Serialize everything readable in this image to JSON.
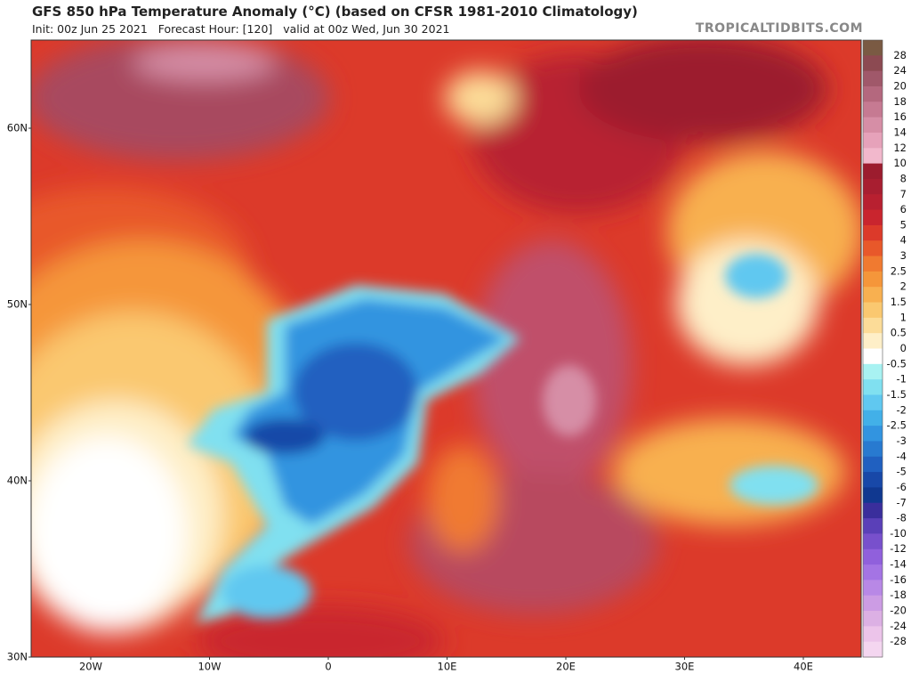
{
  "header": {
    "title": "GFS 850 hPa Temperature Anomaly (°C) (based on CFSR 1981-2010 Climatology)",
    "subtitle": "Init: 00z Jun 25 2021   Forecast Hour: [120]   valid at 00z Wed, Jun 30 2021",
    "credit": "TROPICALTIDBITS.COM"
  },
  "map": {
    "lat_labels": [
      "60N",
      "50N",
      "40N",
      "30N"
    ],
    "lon_labels": [
      "20W",
      "10W",
      "0",
      "10E",
      "20E",
      "30E",
      "40E"
    ]
  },
  "colorbar": {
    "labels": [
      28,
      24,
      20,
      18,
      16,
      14,
      12,
      10,
      8,
      7,
      6,
      5,
      4,
      3,
      2.5,
      2,
      1.5,
      1,
      0.5,
      0,
      -0.5,
      -1,
      -1.5,
      -2,
      -2.5,
      -3,
      -4,
      -5,
      -6,
      -7,
      -8,
      -10,
      -12,
      -14,
      -16,
      -18,
      -20,
      -24,
      -28
    ],
    "colors": [
      "#7a5a43",
      "#8c4a52",
      "#a0586a",
      "#b4687e",
      "#c67a92",
      "#d68ea6",
      "#e6a2ba",
      "#f2b8cc",
      "#9c1c2e",
      "#a81e30",
      "#b82030",
      "#c9252e",
      "#dc3a2a",
      "#e8582a",
      "#f07a30",
      "#f5963a",
      "#f8b050",
      "#fac870",
      "#fcdc98",
      "#feefc8",
      "#ffffff",
      "#a8f2f2",
      "#80e0f0",
      "#60c8f0",
      "#42b0e8",
      "#3294e0",
      "#287ad0",
      "#2060c0",
      "#1848a8",
      "#103890",
      "#3a2e9c",
      "#5a40b8",
      "#7850cc",
      "#9060dc",
      "#a474e4",
      "#b888e6",
      "#cc9ce4",
      "#dcb0e4",
      "#ecc4ea",
      "#f4d6f0"
    ]
  }
}
